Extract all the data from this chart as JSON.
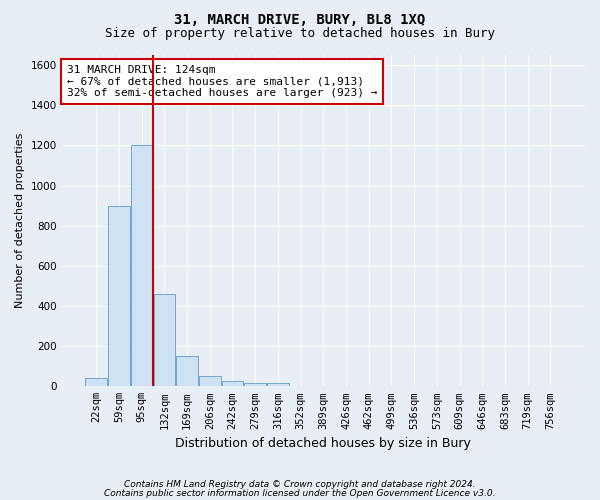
{
  "title": "31, MARCH DRIVE, BURY, BL8 1XQ",
  "subtitle": "Size of property relative to detached houses in Bury",
  "xlabel": "Distribution of detached houses by size in Bury",
  "ylabel": "Number of detached properties",
  "bar_labels": [
    "22sqm",
    "59sqm",
    "95sqm",
    "132sqm",
    "169sqm",
    "206sqm",
    "242sqm",
    "279sqm",
    "316sqm",
    "352sqm",
    "389sqm",
    "426sqm",
    "462sqm",
    "499sqm",
    "536sqm",
    "573sqm",
    "609sqm",
    "646sqm",
    "683sqm",
    "719sqm",
    "756sqm"
  ],
  "bar_values": [
    40,
    900,
    1200,
    460,
    150,
    50,
    25,
    15,
    15,
    0,
    0,
    0,
    0,
    0,
    0,
    0,
    0,
    0,
    0,
    0,
    0
  ],
  "bar_color": "#cfe2f3",
  "bar_edge_color": "#6fa8d0",
  "vline_x_index": 2.5,
  "vline_color": "#cc0000",
  "annotation_text": "31 MARCH DRIVE: 124sqm\n← 67% of detached houses are smaller (1,913)\n32% of semi-detached houses are larger (923) →",
  "annotation_box_facecolor": "#ffffff",
  "annotation_box_edgecolor": "#cc0000",
  "ylim": [
    0,
    1650
  ],
  "yticks": [
    0,
    200,
    400,
    600,
    800,
    1000,
    1200,
    1400,
    1600
  ],
  "footnote_line1": "Contains HM Land Registry data © Crown copyright and database right 2024.",
  "footnote_line2": "Contains public sector information licensed under the Open Government Licence v3.0.",
  "bg_color": "#e8eef5",
  "plot_bg_color": "#e8eef5",
  "grid_color": "#ffffff",
  "title_fontsize": 10,
  "subtitle_fontsize": 9,
  "ylabel_fontsize": 8,
  "xlabel_fontsize": 9,
  "tick_fontsize": 7.5,
  "annotation_fontsize": 8,
  "footnote_fontsize": 6.5
}
